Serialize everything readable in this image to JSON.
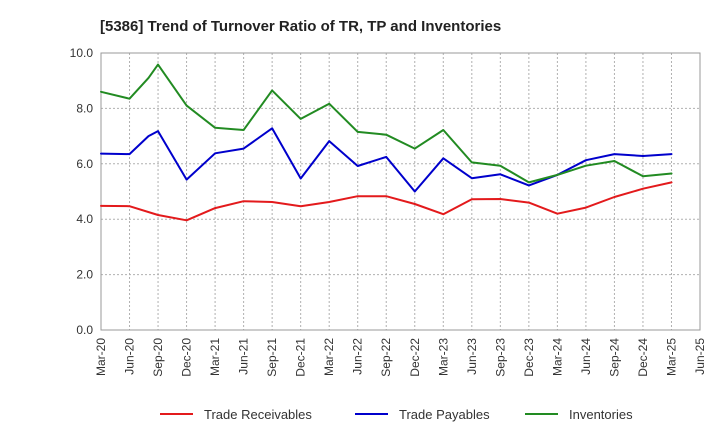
{
  "chart_data": {
    "type": "line",
    "title": "[5386]  Trend of Turnover Ratio of TR, TP and Inventories",
    "xlabel": "",
    "ylabel": "",
    "ylim": [
      0,
      10
    ],
    "yticks": [
      "0.0",
      "2.0",
      "4.0",
      "6.0",
      "8.0",
      "10.0"
    ],
    "grid": true,
    "legend_position": "bottom",
    "x_tick_labels": [
      "Mar-20",
      "Jun-20",
      "Sep-20",
      "Dec-20",
      "Mar-21",
      "Jun-21",
      "Sep-21",
      "Dec-21",
      "Mar-22",
      "Jun-22",
      "Sep-22",
      "Dec-22",
      "Mar-23",
      "Jun-23",
      "Sep-23",
      "Dec-23",
      "Mar-24",
      "Jun-24",
      "Sep-24",
      "Dec-24",
      "Mar-25",
      "Jun-25"
    ],
    "x": [
      "Mar-20",
      "Apr-20",
      "May-20",
      "Jun-20",
      "Jul-20",
      "Aug-20",
      "Sep-20",
      "Oct-20",
      "Nov-20",
      "Dec-20",
      "Jan-21",
      "Feb-21",
      "Mar-21",
      "Apr-21",
      "May-21",
      "Jun-21",
      "Jul-21",
      "Aug-21",
      "Sep-21",
      "Oct-21",
      "Nov-21",
      "Dec-21",
      "Jan-22",
      "Feb-22",
      "Mar-22",
      "Apr-22",
      "May-22",
      "Jun-22",
      "Jul-22",
      "Aug-22",
      "Sep-22",
      "Oct-22",
      "Nov-22",
      "Dec-22",
      "Jan-23",
      "Feb-23",
      "Mar-23",
      "Apr-23",
      "May-23",
      "Jun-23",
      "Jul-23",
      "Aug-23",
      "Sep-23",
      "Oct-23",
      "Nov-23",
      "Dec-23",
      "Jan-24",
      "Feb-24",
      "Mar-24",
      "Apr-24",
      "May-24",
      "Jun-24",
      "Jul-24",
      "Aug-24",
      "Sep-24",
      "Oct-24",
      "Nov-24",
      "Dec-24",
      "Jan-25",
      "Feb-25",
      "Mar-25",
      "Apr-25",
      "May-25",
      "Jun-25"
    ],
    "series": [
      {
        "name": "Trade Receivables",
        "color": "#e31a1c",
        "points": [
          [
            "Mar-20",
            4.48
          ],
          [
            "Jun-20",
            4.47
          ],
          [
            "Sep-20",
            4.15
          ],
          [
            "Dec-20",
            3.96
          ],
          [
            "Mar-21",
            4.4
          ],
          [
            "Jun-21",
            4.65
          ],
          [
            "Sep-21",
            4.62
          ],
          [
            "Dec-21",
            4.47
          ],
          [
            "Mar-22",
            4.62
          ],
          [
            "Jun-22",
            4.83
          ],
          [
            "Sep-22",
            4.83
          ],
          [
            "Dec-22",
            4.55
          ],
          [
            "Mar-23",
            4.18
          ],
          [
            "Jun-23",
            4.72
          ],
          [
            "Sep-23",
            4.73
          ],
          [
            "Dec-23",
            4.6
          ],
          [
            "Mar-24",
            4.2
          ],
          [
            "Jun-24",
            4.42
          ],
          [
            "Sep-24",
            4.8
          ],
          [
            "Dec-24",
            5.1
          ],
          [
            "Mar-25",
            5.33
          ]
        ]
      },
      {
        "name": "Trade Payables",
        "color": "#0000cc",
        "points": [
          [
            "Mar-20",
            6.37
          ],
          [
            "Jun-20",
            6.35
          ],
          [
            "Aug-20",
            7.0
          ],
          [
            "Sep-20",
            7.18
          ],
          [
            "Dec-20",
            5.43
          ],
          [
            "Mar-21",
            6.38
          ],
          [
            "Jun-21",
            6.55
          ],
          [
            "Sep-21",
            7.28
          ],
          [
            "Dec-21",
            5.47
          ],
          [
            "Mar-22",
            6.82
          ],
          [
            "Jun-22",
            5.92
          ],
          [
            "Sep-22",
            6.25
          ],
          [
            "Dec-22",
            5.0
          ],
          [
            "Mar-23",
            6.2
          ],
          [
            "Jun-23",
            5.48
          ],
          [
            "Sep-23",
            5.62
          ],
          [
            "Dec-23",
            5.22
          ],
          [
            "Mar-24",
            5.6
          ],
          [
            "Jun-24",
            6.13
          ],
          [
            "Sep-24",
            6.35
          ],
          [
            "Dec-24",
            6.28
          ],
          [
            "Mar-25",
            6.35
          ]
        ]
      },
      {
        "name": "Inventories",
        "color": "#228b22",
        "points": [
          [
            "Mar-20",
            8.6
          ],
          [
            "Jun-20",
            8.35
          ],
          [
            "Aug-20",
            9.1
          ],
          [
            "Sep-20",
            9.58
          ],
          [
            "Dec-20",
            8.1
          ],
          [
            "Mar-21",
            7.3
          ],
          [
            "Jun-21",
            7.22
          ],
          [
            "Sep-21",
            8.65
          ],
          [
            "Dec-21",
            7.62
          ],
          [
            "Mar-22",
            8.17
          ],
          [
            "Jun-22",
            7.15
          ],
          [
            "Sep-22",
            7.05
          ],
          [
            "Dec-22",
            6.55
          ],
          [
            "Mar-23",
            7.22
          ],
          [
            "Jun-23",
            6.05
          ],
          [
            "Sep-23",
            5.93
          ],
          [
            "Dec-23",
            5.33
          ],
          [
            "Mar-24",
            5.6
          ],
          [
            "Jun-24",
            5.93
          ],
          [
            "Sep-24",
            6.1
          ],
          [
            "Dec-24",
            5.55
          ],
          [
            "Mar-25",
            5.65
          ]
        ]
      }
    ]
  }
}
